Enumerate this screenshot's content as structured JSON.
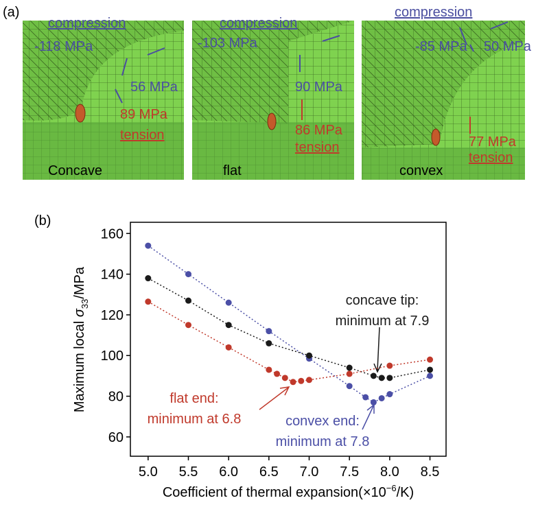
{
  "panel_a": {
    "label": "(a)",
    "panels": [
      {
        "name": "Concave",
        "compression": "compression",
        "compressive": [
          "-118 MPa",
          "56 MPa"
        ],
        "tensile": "89 MPa",
        "tension": "tension"
      },
      {
        "name": "flat",
        "compression": "compression",
        "compressive": [
          "-103 MPa",
          "90 MPa"
        ],
        "tensile": "86 MPa",
        "tension": "tension"
      },
      {
        "name": "convex",
        "compression": "compression",
        "compressive": [
          "-85 MPa",
          "50 MPa"
        ],
        "tensile": "77 MPa",
        "tension": "tension"
      }
    ]
  },
  "chart_data": {
    "type": "scatter",
    "panel_label": "(b)",
    "xlabel": [
      "Coefficient of thermal expansion(×10",
      "−6",
      "/K)"
    ],
    "ylabel": [
      "Maximum local ",
      "σ",
      "33",
      "/MPa"
    ],
    "xlim": [
      4.78,
      8.7
    ],
    "ylim": [
      50.5,
      165.5
    ],
    "xticks": [
      {
        "value": 5,
        "label": "5.0"
      },
      {
        "value": 5.5,
        "label": "5.5"
      },
      {
        "value": 6,
        "label": "6.0"
      },
      {
        "value": 6.5,
        "label": "6.5"
      },
      {
        "value": 7,
        "label": "7.0"
      },
      {
        "value": 7.5,
        "label": "7.5"
      },
      {
        "value": 8,
        "label": "8.0"
      },
      {
        "value": 8.5,
        "label": "8.5"
      }
    ],
    "yticks": [
      60,
      80,
      100,
      120,
      140,
      160
    ],
    "series": [
      {
        "name": "convex end",
        "color": "#4b4fa6",
        "x": [
          5,
          5.5,
          6,
          6.5,
          7,
          7.5,
          7.7,
          7.8,
          7.9,
          8,
          8.5
        ],
        "values": [
          154,
          140,
          126,
          112,
          98.5,
          85,
          79.5,
          77,
          79,
          81,
          90
        ]
      },
      {
        "name": "concave tip",
        "color": "#1a1a1a",
        "x": [
          5,
          5.5,
          6,
          6.5,
          7,
          7.5,
          7.8,
          7.9,
          8,
          8.5
        ],
        "values": [
          138,
          127,
          115,
          106,
          100,
          94,
          90,
          89,
          89,
          93
        ]
      },
      {
        "name": "flat end",
        "color": "#c0392b",
        "x": [
          5,
          5.5,
          6,
          6.5,
          6.6,
          6.7,
          6.8,
          6.9,
          7,
          7.5,
          8,
          8.5
        ],
        "values": [
          126.5,
          115,
          104,
          93,
          91,
          89,
          87,
          87.5,
          88,
          91,
          95,
          98
        ]
      }
    ],
    "annotations": [
      {
        "lines": [
          "concave tip:",
          "minimum at 7.9"
        ],
        "color": "#1a1a1a"
      },
      {
        "lines": [
          "flat end:",
          "minimum at 6.8"
        ],
        "color": "#c0392b"
      },
      {
        "lines": [
          "convex end:",
          "minimum at 7.8"
        ],
        "color": "#4b4fa6"
      }
    ]
  }
}
